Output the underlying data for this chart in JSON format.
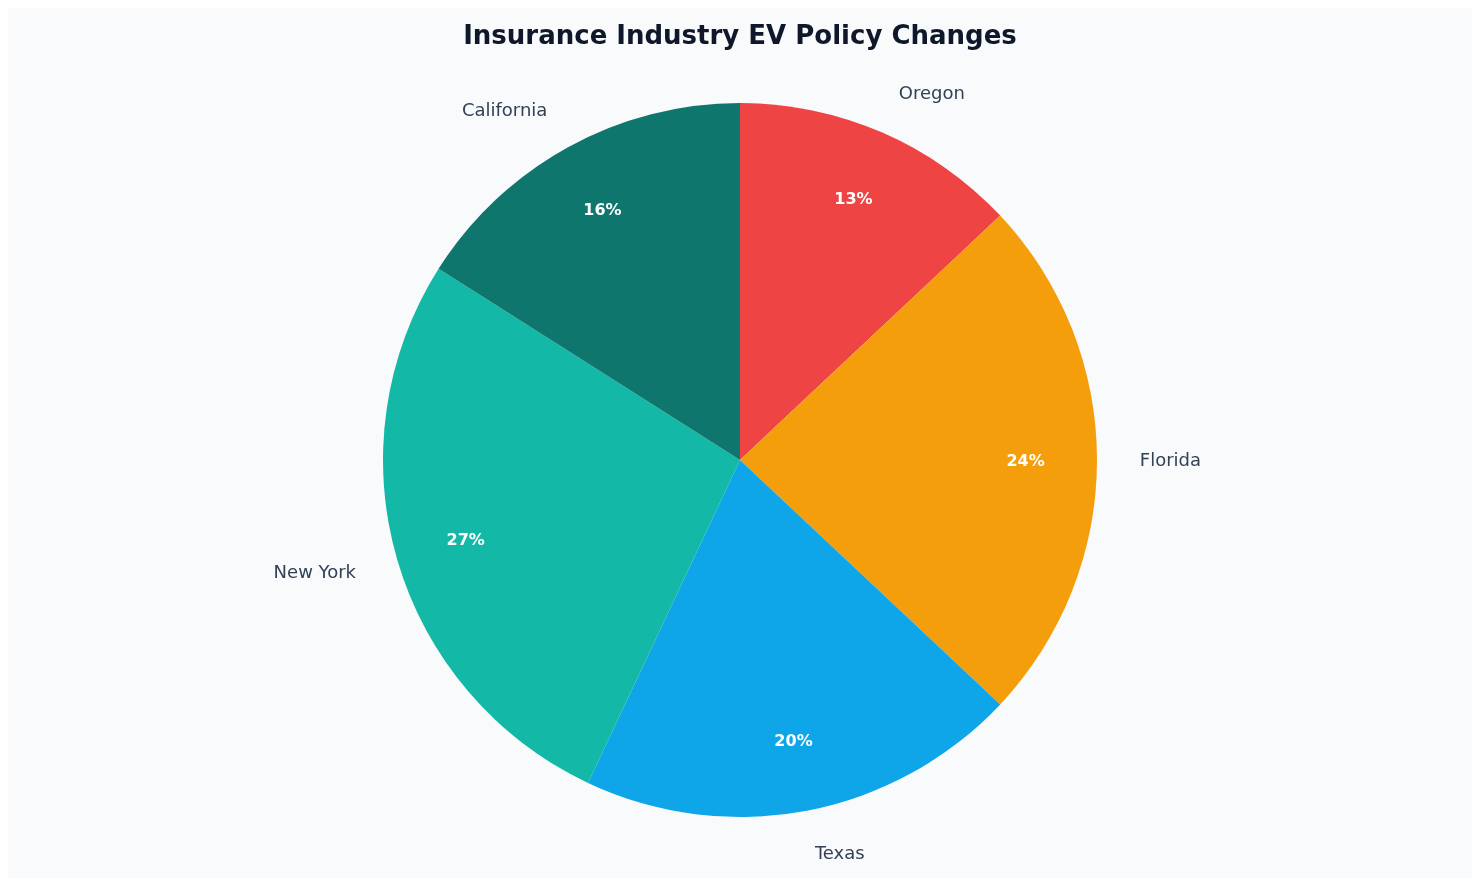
{
  "chart_data": {
    "type": "pie",
    "title": "Insurance Industry EV Policy Changes",
    "categories": [
      "Oregon",
      "Florida",
      "Texas",
      "New York",
      "California"
    ],
    "values": [
      13,
      24,
      20,
      27,
      16
    ],
    "colors": [
      "#ef4444",
      "#f59e0b",
      "#0ea5e9",
      "#14b8a6",
      "#0f766e"
    ],
    "value_labels": [
      "13%",
      "24%",
      "20%",
      "27%",
      "16%"
    ]
  }
}
